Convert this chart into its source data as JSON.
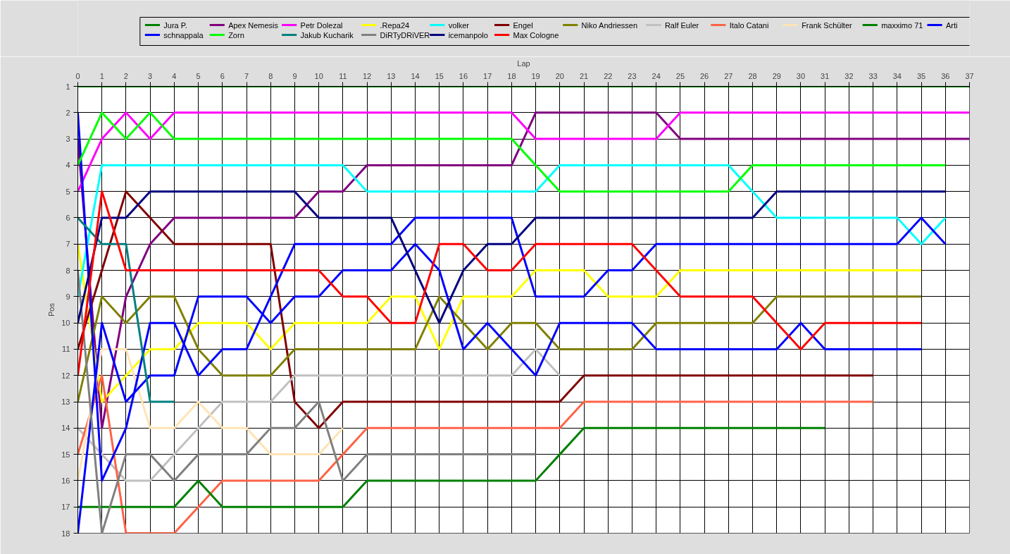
{
  "chart_data": {
    "type": "line",
    "xlabel": "Lap",
    "ylabel": "Pos",
    "x": [
      0,
      1,
      2,
      3,
      4,
      5,
      6,
      7,
      8,
      9,
      10,
      11,
      12,
      13,
      14,
      15,
      16,
      17,
      18,
      19,
      20,
      21,
      22,
      23,
      24,
      25,
      26,
      27,
      28,
      29,
      30,
      31,
      32,
      33,
      34,
      35,
      36,
      37
    ],
    "xlim": [
      0,
      37
    ],
    "ylim": [
      18,
      1
    ],
    "xticks": [
      0,
      1,
      2,
      3,
      4,
      5,
      6,
      7,
      8,
      9,
      10,
      11,
      12,
      13,
      14,
      15,
      16,
      17,
      18,
      19,
      20,
      21,
      22,
      23,
      24,
      25,
      26,
      27,
      28,
      29,
      30,
      31,
      32,
      33,
      34,
      35,
      36,
      37
    ],
    "yticks": [
      1,
      2,
      3,
      4,
      5,
      6,
      7,
      8,
      9,
      10,
      11,
      12,
      13,
      14,
      15,
      16,
      17,
      18
    ],
    "grid": true,
    "legend": "top",
    "series": [
      {
        "name": "Jura P.",
        "color": "#008000",
        "values": [
          1,
          1,
          1,
          1,
          1,
          1,
          1,
          1,
          1,
          1,
          1,
          1,
          1,
          1,
          1,
          1,
          1,
          1,
          1,
          1,
          1,
          1,
          1,
          1,
          1,
          1,
          1,
          1,
          1,
          1,
          1,
          1,
          1,
          1,
          1,
          1,
          1,
          1
        ]
      },
      {
        "name": "Apex Nemesis",
        "color": "#800080",
        "values": [
          3,
          14,
          9,
          7,
          6,
          6,
          6,
          6,
          6,
          6,
          5,
          5,
          4,
          4,
          4,
          4,
          4,
          4,
          4,
          2,
          2,
          2,
          2,
          2,
          2,
          3,
          3,
          3,
          3,
          3,
          3,
          3,
          3,
          3,
          3,
          3,
          3,
          3
        ]
      },
      {
        "name": "Petr Dolezal",
        "color": "#ff00ff",
        "values": [
          5,
          3,
          2,
          3,
          2,
          2,
          2,
          2,
          2,
          2,
          2,
          2,
          2,
          2,
          2,
          2,
          2,
          2,
          2,
          3,
          3,
          3,
          3,
          3,
          3,
          2,
          2,
          2,
          2,
          2,
          2,
          2,
          2,
          2,
          2,
          2,
          2,
          2
        ]
      },
      {
        "name": ".Repa24",
        "color": "#ffff00",
        "values": [
          7,
          13,
          12,
          11,
          11,
          10,
          10,
          10,
          11,
          10,
          10,
          10,
          10,
          9,
          9,
          11,
          9,
          9,
          9,
          8,
          8,
          8,
          9,
          9,
          9,
          8,
          8,
          8,
          8,
          8,
          8,
          8,
          8,
          8,
          8,
          8,
          null,
          null
        ]
      },
      {
        "name": "volker",
        "color": "#00ffff",
        "values": [
          9,
          4,
          4,
          4,
          4,
          4,
          4,
          4,
          4,
          4,
          4,
          4,
          5,
          5,
          5,
          5,
          5,
          5,
          5,
          5,
          4,
          4,
          4,
          4,
          4,
          4,
          4,
          4,
          5,
          6,
          6,
          6,
          6,
          6,
          6,
          7,
          6,
          null
        ]
      },
      {
        "name": "Engel",
        "color": "#800000",
        "values": [
          11,
          8,
          5,
          6,
          7,
          7,
          7,
          7,
          7,
          13,
          14,
          13,
          13,
          13,
          13,
          13,
          13,
          13,
          13,
          13,
          13,
          12,
          12,
          12,
          12,
          12,
          12,
          12,
          12,
          12,
          12,
          12,
          12,
          12,
          null,
          null,
          null,
          null
        ]
      },
      {
        "name": "Niko Andriessen",
        "color": "#808000",
        "values": [
          13,
          9,
          10,
          9,
          9,
          11,
          12,
          12,
          12,
          11,
          11,
          11,
          11,
          11,
          11,
          9,
          10,
          11,
          10,
          10,
          11,
          11,
          11,
          11,
          10,
          10,
          10,
          10,
          10,
          9,
          9,
          9,
          9,
          9,
          9,
          9,
          null,
          null
        ]
      },
      {
        "name": "Ralf Euler",
        "color": "#c0c0c0",
        "values": [
          14,
          15,
          16,
          16,
          15,
          14,
          13,
          13,
          13,
          12,
          12,
          12,
          12,
          12,
          12,
          12,
          12,
          12,
          12,
          11,
          12,
          null,
          null,
          null,
          null,
          null,
          null,
          null,
          null,
          null,
          null,
          null,
          null,
          null,
          null,
          null,
          null,
          null
        ]
      },
      {
        "name": "Italo Catani",
        "color": "#ff6347",
        "values": [
          15,
          12,
          18,
          18,
          18,
          17,
          16,
          16,
          16,
          16,
          16,
          15,
          14,
          14,
          14,
          14,
          14,
          14,
          14,
          14,
          14,
          13,
          13,
          13,
          13,
          13,
          13,
          13,
          13,
          13,
          13,
          13,
          13,
          13,
          null,
          null,
          null,
          null
        ]
      },
      {
        "name": "Frank Schülter",
        "color": "#ffe4b5",
        "values": [
          16,
          11,
          11,
          14,
          14,
          13,
          14,
          14,
          15,
          15,
          15,
          14,
          null,
          null,
          null,
          null,
          null,
          null,
          null,
          null,
          null,
          null,
          null,
          null,
          null,
          null,
          null,
          null,
          null,
          null,
          null,
          null,
          null,
          null,
          null,
          null,
          null,
          null
        ]
      },
      {
        "name": "maxximo 71",
        "color": "#008000",
        "values": [
          17,
          17,
          17,
          17,
          17,
          16,
          17,
          17,
          17,
          17,
          17,
          17,
          16,
          16,
          16,
          16,
          16,
          16,
          16,
          16,
          15,
          14,
          14,
          14,
          14,
          14,
          14,
          14,
          14,
          14,
          14,
          14,
          null,
          null,
          null,
          null,
          null,
          null
        ]
      },
      {
        "name": "Arti",
        "color": "#0000ff",
        "values": [
          18,
          10,
          13,
          12,
          12,
          9,
          9,
          9,
          10,
          9,
          9,
          8,
          8,
          8,
          7,
          8,
          11,
          10,
          11,
          12,
          10,
          10,
          10,
          10,
          11,
          11,
          11,
          11,
          11,
          11,
          10,
          11,
          11,
          11,
          11,
          11,
          null,
          null
        ]
      },
      {
        "name": "schnappala",
        "color": "#0000ff",
        "values": [
          2,
          16,
          14,
          10,
          10,
          12,
          11,
          11,
          9,
          7,
          7,
          7,
          7,
          7,
          6,
          6,
          6,
          6,
          6,
          9,
          9,
          9,
          8,
          8,
          7,
          7,
          7,
          7,
          7,
          7,
          7,
          7,
          7,
          7,
          7,
          6,
          7,
          null
        ]
      },
      {
        "name": "Zorn",
        "color": "#00ff00",
        "values": [
          4,
          2,
          3,
          2,
          3,
          3,
          3,
          3,
          3,
          3,
          3,
          3,
          3,
          3,
          3,
          3,
          3,
          3,
          3,
          4,
          5,
          5,
          5,
          5,
          5,
          5,
          5,
          5,
          4,
          4,
          4,
          4,
          4,
          4,
          4,
          4,
          4,
          null
        ]
      },
      {
        "name": "Jakub Kucharik",
        "color": "#008080",
        "values": [
          6,
          7,
          7,
          13,
          13,
          null,
          null,
          null,
          null,
          null,
          null,
          null,
          null,
          null,
          null,
          null,
          null,
          null,
          null,
          null,
          null,
          null,
          null,
          null,
          null,
          null,
          null,
          null,
          null,
          null,
          null,
          null,
          null,
          null,
          null,
          null,
          null,
          null
        ]
      },
      {
        "name": "DiRTyDRiVER",
        "color": "#808080",
        "values": [
          8,
          18,
          15,
          15,
          16,
          15,
          15,
          15,
          14,
          14,
          13,
          16,
          15,
          15,
          15,
          15,
          15,
          15,
          15,
          15,
          null,
          null,
          null,
          null,
          null,
          null,
          null,
          null,
          null,
          null,
          null,
          null,
          null,
          null,
          null,
          null,
          null,
          null
        ]
      },
      {
        "name": "icemanpolo",
        "color": "#000080",
        "values": [
          10,
          6,
          6,
          5,
          5,
          5,
          5,
          5,
          5,
          5,
          6,
          6,
          6,
          6,
          8,
          10,
          8,
          7,
          7,
          6,
          6,
          6,
          6,
          6,
          6,
          6,
          6,
          6,
          6,
          5,
          5,
          5,
          5,
          5,
          5,
          5,
          5,
          null
        ]
      },
      {
        "name": "Max Cologne",
        "color": "#ff0000",
        "values": [
          12,
          5,
          8,
          8,
          8,
          8,
          8,
          8,
          8,
          8,
          8,
          9,
          9,
          10,
          10,
          7,
          7,
          8,
          8,
          7,
          7,
          7,
          7,
          7,
          8,
          9,
          9,
          9,
          9,
          10,
          11,
          10,
          10,
          10,
          10,
          10,
          null,
          null
        ]
      }
    ]
  }
}
